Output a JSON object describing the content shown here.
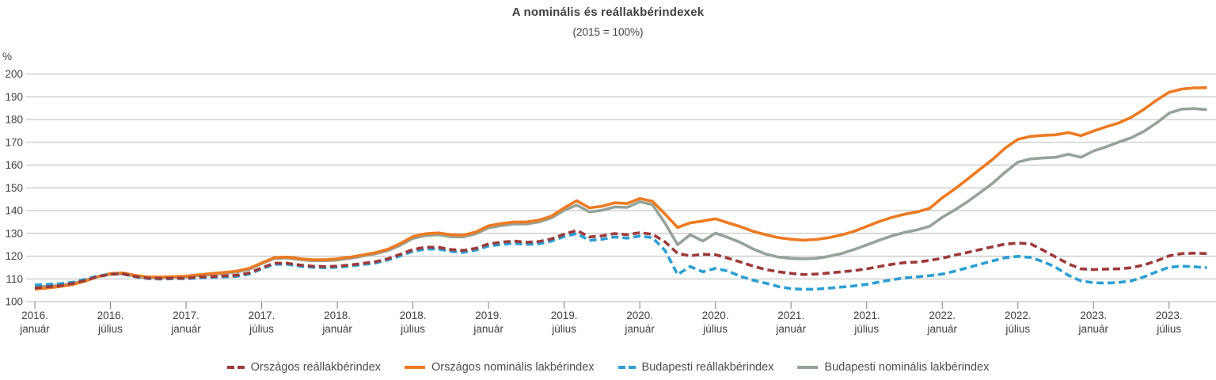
{
  "header": {
    "title": "A nominális és reállakbérindexek",
    "subtitle": "(2015 = 100%)"
  },
  "chart_data": {
    "type": "line",
    "title": "A nominális és reállakbérindexek",
    "subtitle": "(2015 = 100%)",
    "y_unit": "%",
    "ylim": [
      100,
      200
    ],
    "ytick_step": 10,
    "grid": "horizontal",
    "grid_color": "#b9b9b9",
    "tick_color": "#808080",
    "text_color": "#404040",
    "legend_position": "bottom",
    "x_range": [
      "2016-01",
      "2023-10"
    ],
    "x_tick_labels": [
      [
        "2016.",
        "január"
      ],
      [
        "2016.",
        "július"
      ],
      [
        "2017.",
        "január"
      ],
      [
        "2017.",
        "július"
      ],
      [
        "2018.",
        "január"
      ],
      [
        "2018.",
        "július"
      ],
      [
        "2019.",
        "január"
      ],
      [
        "2019.",
        "július"
      ],
      [
        "2020.",
        "január"
      ],
      [
        "2020.",
        "július"
      ],
      [
        "2021.",
        "január"
      ],
      [
        "2021.",
        "július"
      ],
      [
        "2022.",
        "január"
      ],
      [
        "2022.",
        "július"
      ],
      [
        "2023.",
        "január"
      ],
      [
        "2023.",
        "július"
      ]
    ],
    "x_months": [
      "2016-01",
      "2016-02",
      "2016-03",
      "2016-04",
      "2016-05",
      "2016-06",
      "2016-07",
      "2016-08",
      "2016-09",
      "2016-10",
      "2016-11",
      "2016-12",
      "2017-01",
      "2017-02",
      "2017-03",
      "2017-04",
      "2017-05",
      "2017-06",
      "2017-07",
      "2017-08",
      "2017-09",
      "2017-10",
      "2017-11",
      "2017-12",
      "2018-01",
      "2018-02",
      "2018-03",
      "2018-04",
      "2018-05",
      "2018-06",
      "2018-07",
      "2018-08",
      "2018-09",
      "2018-10",
      "2018-11",
      "2018-12",
      "2019-01",
      "2019-02",
      "2019-03",
      "2019-04",
      "2019-05",
      "2019-06",
      "2019-07",
      "2019-08",
      "2019-09",
      "2019-10",
      "2019-11",
      "2019-12",
      "2020-01",
      "2020-02",
      "2020-03",
      "2020-04",
      "2020-05",
      "2020-06",
      "2020-07",
      "2020-08",
      "2020-09",
      "2020-10",
      "2020-11",
      "2020-12",
      "2021-01",
      "2021-02",
      "2021-03",
      "2021-04",
      "2021-05",
      "2021-06",
      "2021-07",
      "2021-08",
      "2021-09",
      "2021-10",
      "2021-11",
      "2021-12",
      "2022-01",
      "2022-02",
      "2022-03",
      "2022-04",
      "2022-05",
      "2022-06",
      "2022-07",
      "2022-08",
      "2022-09",
      "2022-10",
      "2022-11",
      "2022-12",
      "2023-01",
      "2023-02",
      "2023-03",
      "2023-04",
      "2023-05",
      "2023-06",
      "2023-07",
      "2023-08",
      "2023-09",
      "2023-10"
    ],
    "series": [
      {
        "name": "Országos reállakbérindex",
        "color": "#9e3a3a",
        "dashed": true,
        "values": [
          106.0,
          106.5,
          107.0,
          108.0,
          109.3,
          111.0,
          112.0,
          112.2,
          111.0,
          110.3,
          110.2,
          110.3,
          110.3,
          110.8,
          111.0,
          111.3,
          111.6,
          112.6,
          114.8,
          116.9,
          116.9,
          116.1,
          115.6,
          115.4,
          115.6,
          116.1,
          116.8,
          117.5,
          118.8,
          120.8,
          122.9,
          123.9,
          123.9,
          122.9,
          122.5,
          123.4,
          125.4,
          126.1,
          126.6,
          126.1,
          126.4,
          127.6,
          129.6,
          131.3,
          128.4,
          128.9,
          129.9,
          129.4,
          130.3,
          129.6,
          126.3,
          121.2,
          120.1,
          120.8,
          120.6,
          119.1,
          117.4,
          115.6,
          114.1,
          113.1,
          112.4,
          111.9,
          112.1,
          112.6,
          113.1,
          113.6,
          114.4,
          115.4,
          116.4,
          117.1,
          117.4,
          118.1,
          119.1,
          120.4,
          121.6,
          122.9,
          124.1,
          125.3,
          125.7,
          125.4,
          122.6,
          119.6,
          116.6,
          114.4,
          114.1,
          114.3,
          114.4,
          114.9,
          116.1,
          117.9,
          120.1,
          121.1,
          121.3,
          121.1
        ]
      },
      {
        "name": "Országos nominális lakbérindex",
        "color": "#ed7a22",
        "dashed": false,
        "values": [
          105.5,
          106.0,
          106.6,
          107.5,
          109.0,
          111.0,
          112.3,
          112.6,
          111.5,
          110.8,
          110.8,
          111.0,
          111.2,
          111.8,
          112.3,
          112.8,
          113.4,
          114.6,
          117.0,
          119.3,
          119.6,
          118.9,
          118.4,
          118.4,
          118.8,
          119.5,
          120.5,
          121.5,
          123.0,
          125.5,
          128.6,
          129.8,
          130.2,
          129.4,
          129.2,
          130.6,
          133.3,
          134.3,
          135.0,
          135.0,
          135.8,
          137.6,
          141.2,
          144.3,
          141.2,
          141.9,
          143.4,
          143.1,
          145.3,
          144.1,
          138.5,
          132.6,
          134.6,
          135.4,
          136.4,
          134.6,
          132.9,
          130.9,
          129.4,
          128.1,
          127.4,
          127.0,
          127.3,
          128.1,
          129.3,
          130.9,
          133.0,
          135.2,
          137.0,
          138.4,
          139.4,
          141.0,
          145.6,
          149.5,
          153.8,
          158.2,
          162.5,
          167.5,
          171.3,
          172.6,
          173.0,
          173.3,
          174.3,
          172.9,
          175.0,
          176.8,
          178.5,
          181.0,
          184.5,
          188.5,
          192.0,
          193.4,
          193.9,
          194.0
        ]
      },
      {
        "name": "Budapesti reállakbérindex",
        "color": "#2b9fd3",
        "dashed": true,
        "values": [
          107.3,
          107.6,
          107.9,
          108.5,
          109.8,
          111.3,
          112.1,
          112.1,
          110.9,
          110.1,
          109.9,
          110.1,
          110.1,
          110.4,
          110.6,
          110.9,
          111.1,
          112.1,
          114.4,
          116.4,
          116.4,
          115.6,
          115.1,
          114.9,
          115.1,
          115.6,
          116.3,
          116.9,
          118.3,
          120.1,
          122.1,
          123.1,
          123.1,
          122.1,
          121.6,
          122.6,
          124.4,
          125.1,
          125.6,
          125.1,
          125.4,
          126.6,
          128.6,
          129.9,
          126.9,
          127.4,
          128.4,
          127.9,
          128.8,
          128.1,
          122.5,
          111.9,
          115.4,
          113.1,
          114.6,
          113.4,
          111.1,
          109.4,
          108.1,
          106.6,
          105.7,
          105.4,
          105.5,
          105.9,
          106.4,
          106.9,
          107.6,
          108.6,
          109.6,
          110.4,
          110.9,
          111.4,
          112.1,
          113.4,
          114.9,
          116.4,
          117.9,
          119.3,
          119.9,
          119.4,
          117.6,
          115.1,
          111.6,
          109.1,
          108.3,
          108.1,
          108.4,
          109.1,
          110.9,
          113.1,
          115.1,
          115.6,
          115.3,
          114.9
        ]
      },
      {
        "name": "Budapesti nominális lakbérindex",
        "color": "#95a398",
        "dashed": false,
        "values": [
          106.3,
          106.8,
          107.2,
          108.0,
          109.4,
          111.0,
          112.0,
          112.2,
          111.1,
          110.4,
          110.4,
          110.7,
          110.9,
          111.4,
          111.9,
          112.4,
          113.0,
          114.2,
          116.7,
          119.0,
          119.2,
          118.5,
          118.0,
          118.0,
          118.3,
          119.0,
          120.0,
          121.0,
          122.4,
          124.8,
          127.8,
          129.0,
          129.4,
          128.5,
          128.4,
          129.8,
          132.4,
          133.4,
          134.1,
          134.1,
          135.0,
          136.8,
          140.1,
          142.4,
          139.4,
          140.1,
          141.6,
          141.4,
          143.9,
          142.6,
          134.5,
          125.0,
          129.4,
          126.6,
          130.1,
          128.2,
          126.0,
          123.1,
          120.9,
          119.6,
          119.0,
          118.8,
          119.0,
          119.9,
          121.1,
          122.9,
          124.9,
          127.0,
          128.9,
          130.4,
          131.5,
          133.1,
          137.0,
          140.3,
          143.9,
          147.9,
          152.0,
          156.9,
          161.3,
          162.7,
          163.1,
          163.4,
          164.8,
          163.4,
          166.2,
          168.0,
          170.1,
          172.0,
          174.8,
          178.5,
          182.8,
          184.6,
          184.8,
          184.3
        ]
      }
    ]
  }
}
